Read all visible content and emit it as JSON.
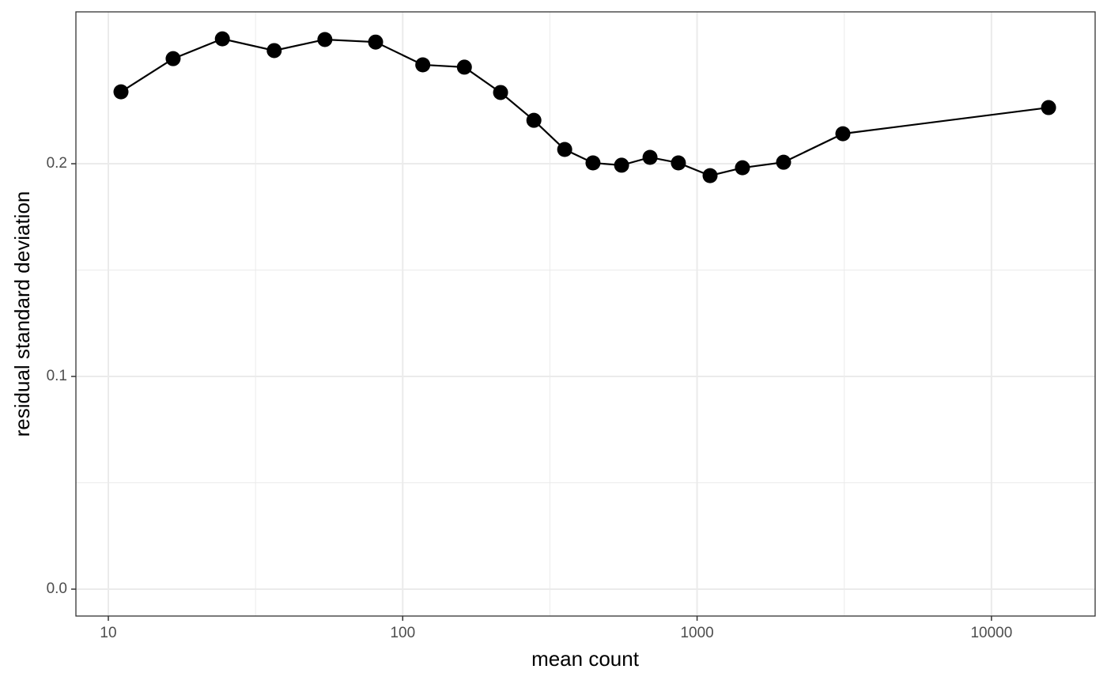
{
  "chart_data": {
    "type": "line",
    "x_label": "mean count",
    "y_label": "residual standard deviation",
    "x": [
      11.04,
      16.6,
      24.4,
      36.6,
      54.4,
      80.9,
      117,
      162,
      215,
      279,
      355,
      443,
      554,
      692,
      864,
      1107,
      1426,
      1967,
      3128,
      15630
    ],
    "series": [
      {
        "color": "#000000",
        "values": [
          0.2338,
          0.2494,
          0.2587,
          0.2532,
          0.2584,
          0.2572,
          0.2465,
          0.2454,
          0.2335,
          0.2204,
          0.2067,
          0.2004,
          0.1993,
          0.203,
          0.2004,
          0.1944,
          0.1981,
          0.2007,
          0.2141,
          0.2264
        ]
      }
    ],
    "xlim": [
      7.76,
      22500
    ],
    "xticks": [
      10,
      100,
      1000,
      10000
    ],
    "xscale": "log",
    "ylim": [
      -0.01264,
      0.2714
    ],
    "yticks": [
      {
        "value": 0,
        "label": "0.0"
      },
      0.1,
      0.2
    ],
    "grid": true
  }
}
